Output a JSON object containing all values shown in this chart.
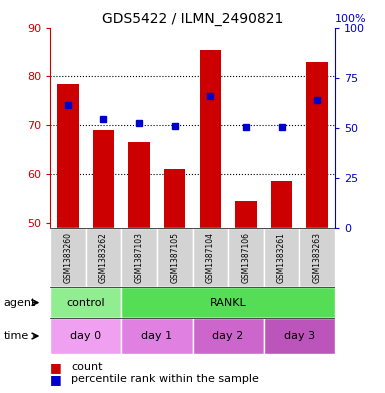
{
  "title": "GDS5422 / ILMN_2490821",
  "samples": [
    "GSM1383260",
    "GSM1383262",
    "GSM1387103",
    "GSM1387105",
    "GSM1387104",
    "GSM1387106",
    "GSM1383261",
    "GSM1383263"
  ],
  "counts": [
    78.5,
    69.0,
    66.5,
    61.0,
    85.5,
    54.5,
    58.5,
    83.0
  ],
  "percentiles_raw": [
    61.5,
    54.5,
    52.5,
    51.0,
    66.0,
    50.5,
    50.5,
    64.0
  ],
  "ylim_left": [
    49,
    90
  ],
  "yticks_left": [
    50,
    60,
    70,
    80,
    90
  ],
  "yticks_right": [
    0,
    25,
    50,
    75,
    100
  ],
  "bar_bottom": 49,
  "bar_color": "#cc0000",
  "percentile_color": "#0000cc",
  "bg_color": "#d3d3d3",
  "grid_color": "black",
  "left_axis_color": "#cc0000",
  "right_axis_color": "#0000cc",
  "agent_groups": [
    {
      "label": "control",
      "start": 0,
      "end": 2,
      "color": "#90ee90"
    },
    {
      "label": "RANKL",
      "start": 2,
      "end": 8,
      "color": "#55dd55"
    }
  ],
  "time_groups": [
    {
      "label": "day 0",
      "start": 0,
      "end": 2,
      "color": "#f0a0f0"
    },
    {
      "label": "day 1",
      "start": 2,
      "end": 4,
      "color": "#e080e0"
    },
    {
      "label": "day 2",
      "start": 4,
      "end": 6,
      "color": "#cc66cc"
    },
    {
      "label": "day 3",
      "start": 6,
      "end": 8,
      "color": "#bb55bb"
    }
  ],
  "legend_count_color": "#cc0000",
  "legend_pct_color": "#0000cc"
}
